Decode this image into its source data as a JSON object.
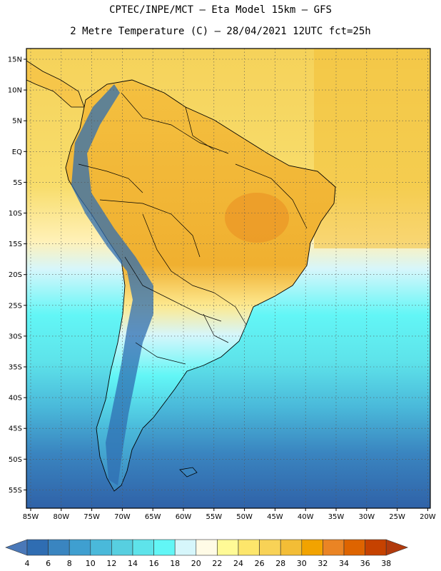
{
  "header": {
    "line1": "CPTEC/INPE/MCT –  Eta Model 15km – GFS",
    "line2": "2 Metre Temperature (C) – 28/04/2021 12UTC fct=25h"
  },
  "map": {
    "lat_labels": [
      "15N",
      "10N",
      "5N",
      "EQ",
      "5S",
      "10S",
      "15S",
      "20S",
      "25S",
      "30S",
      "35S",
      "40S",
      "45S",
      "50S",
      "55S"
    ],
    "lon_labels": [
      "85W",
      "80W",
      "75W",
      "70W",
      "65W",
      "60W",
      "55W",
      "50W",
      "45W",
      "40W",
      "35W",
      "30W",
      "25W",
      "20W"
    ]
  },
  "colorbar": {
    "labels": [
      "4",
      "6",
      "8",
      "10",
      "12",
      "14",
      "16",
      "18",
      "20",
      "22",
      "24",
      "26",
      "28",
      "30",
      "32",
      "34",
      "36",
      "38"
    ],
    "colors": [
      "#4a78b8",
      "#2f6db2",
      "#3a85c0",
      "#3f9fd0",
      "#4ab9da",
      "#57cfe0",
      "#5ee3ea",
      "#62f6f6",
      "#d6f6fb",
      "#fffbe6",
      "#fffa96",
      "#fde66b",
      "#f8d256",
      "#f3bd36",
      "#f2a300",
      "#ea8424",
      "#de6400",
      "#c64200",
      "#b13a0c"
    ]
  }
}
